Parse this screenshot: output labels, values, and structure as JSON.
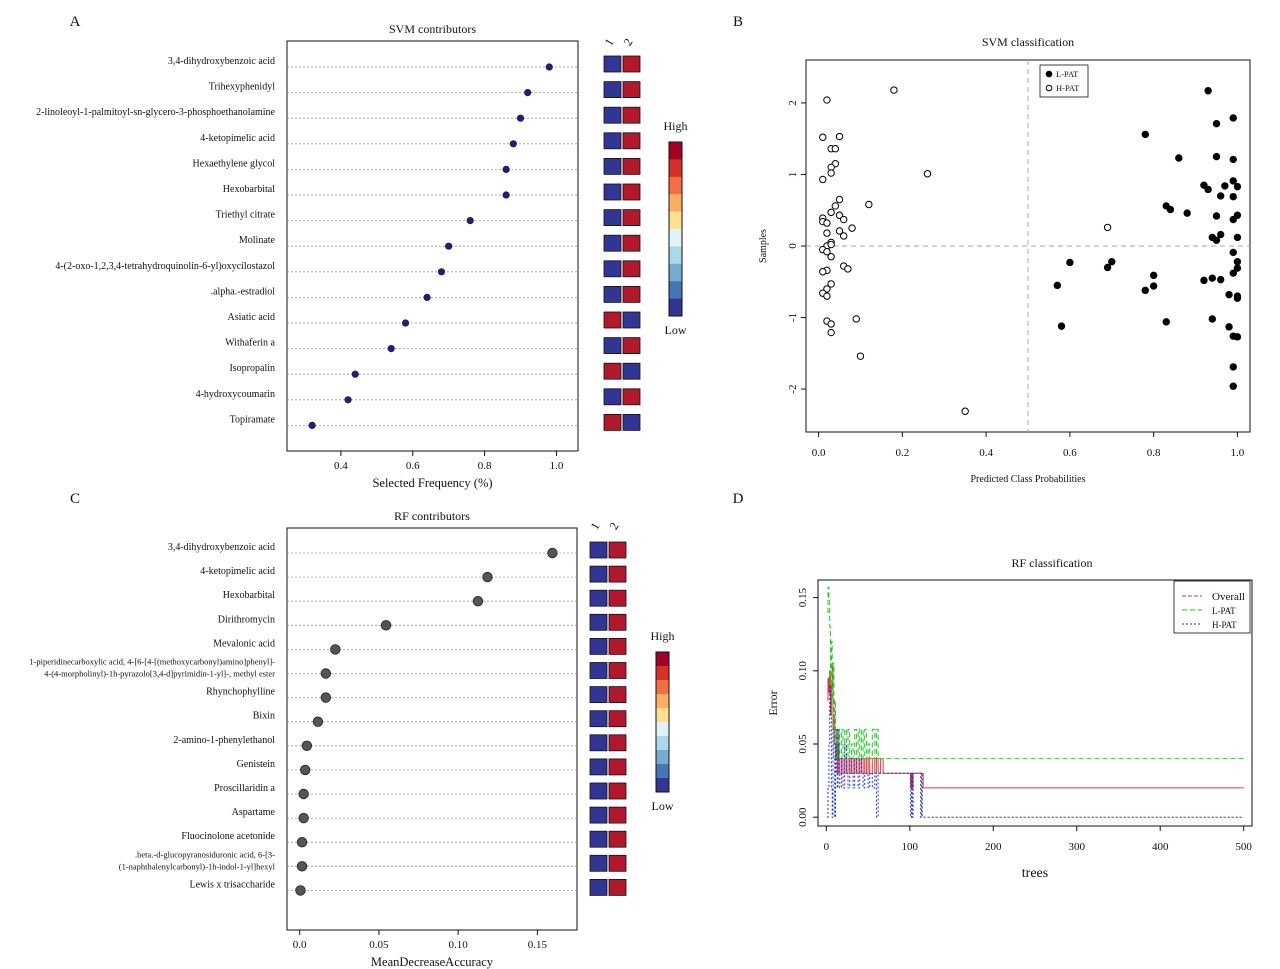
{
  "panel_letters": [
    "A",
    "B",
    "C",
    "D"
  ],
  "chart_data": [
    {
      "id": "A",
      "type": "scatter",
      "title": "SVM contributors",
      "xlabel": "Selected Frequency (%)",
      "xlim": [
        0.25,
        1.06
      ],
      "xticks": [
        0.4,
        0.6,
        0.8,
        1.0
      ],
      "xtick_labels": [
        "0.4",
        "0.6",
        "0.8",
        "1.0"
      ],
      "categories": [
        "3,4-dihydroxybenzoic acid",
        "Trihexyphenidyl",
        "2-linoleoyl-1-palmitoyl-sn-glycero-3-phosphoethanolamine",
        "4-ketopimelic acid",
        "Hexaethylene glycol",
        "Hexobarbital",
        "Triethyl citrate",
        "Molinate",
        "4-(2-oxo-1,2,3,4-tetrahydroquinolin-6-yl)oxycilostazol",
        ".alpha.-estradiol",
        "Asiatic acid",
        "Withaferin a",
        "Isopropalin",
        "4-hydroxycoumarin",
        "Topiramate"
      ],
      "values": [
        0.98,
        0.92,
        0.9,
        0.88,
        0.86,
        0.86,
        0.76,
        0.7,
        0.68,
        0.64,
        0.58,
        0.54,
        0.44,
        0.42,
        0.32
      ],
      "point_color": "#1a1f8c",
      "heatmap": {
        "columns": [
          "1",
          "2"
        ],
        "cells": [
          [
            "L",
            "H"
          ],
          [
            "L",
            "H"
          ],
          [
            "L",
            "H"
          ],
          [
            "L",
            "H"
          ],
          [
            "L",
            "H"
          ],
          [
            "L",
            "H"
          ],
          [
            "L",
            "H"
          ],
          [
            "L",
            "H"
          ],
          [
            "L",
            "H"
          ],
          [
            "L",
            "H"
          ],
          [
            "H",
            "L"
          ],
          [
            "L",
            "H"
          ],
          [
            "H",
            "L"
          ],
          [
            "L",
            "H"
          ],
          [
            "H",
            "L"
          ]
        ]
      },
      "colorbar": {
        "high_label": "High",
        "low_label": "Low"
      }
    },
    {
      "id": "B",
      "type": "scatter",
      "title": "SVM classification",
      "xlabel": "Predicted Class Probabilities",
      "ylabel": "Samples",
      "xlim": [
        -0.03,
        1.03
      ],
      "ylim": [
        -2.6,
        2.6
      ],
      "xticks": [
        0,
        0.2,
        0.4,
        0.6,
        0.8,
        1.0
      ],
      "xtick_labels": [
        "0.0",
        "0.2",
        "0.4",
        "0.6",
        "0.8",
        "1.0"
      ],
      "yticks": [
        -2,
        -1,
        0,
        1,
        2
      ],
      "ytick_labels": [
        "-2",
        "-1",
        "0",
        "1",
        "2"
      ],
      "vline": 0.5,
      "hline": 0,
      "legend": [
        "L-PAT",
        "H-PAT"
      ],
      "series": [
        {
          "name": "L-PAT",
          "marker": "filled",
          "points": [
            [
              0.93,
              2.17
            ],
            [
              0.99,
              1.79
            ],
            [
              0.95,
              1.71
            ],
            [
              0.78,
              1.56
            ],
            [
              0.86,
              1.23
            ],
            [
              0.95,
              1.25
            ],
            [
              0.99,
              1.21
            ],
            [
              0.92,
              0.85
            ],
            [
              0.97,
              0.84
            ],
            [
              0.99,
              0.91
            ],
            [
              1.0,
              0.83
            ],
            [
              0.93,
              0.79
            ],
            [
              0.96,
              0.7
            ],
            [
              0.99,
              0.69
            ],
            [
              0.83,
              0.56
            ],
            [
              0.84,
              0.51
            ],
            [
              0.88,
              0.46
            ],
            [
              0.95,
              0.42
            ],
            [
              1.0,
              0.43
            ],
            [
              0.99,
              0.37
            ],
            [
              0.96,
              0.16
            ],
            [
              0.94,
              0.12
            ],
            [
              1.0,
              0.12
            ],
            [
              0.95,
              0.08
            ],
            [
              0.99,
              -0.09
            ],
            [
              1.0,
              -0.22
            ],
            [
              0.6,
              -0.23
            ],
            [
              0.7,
              -0.22
            ],
            [
              0.69,
              -0.3
            ],
            [
              1.0,
              -0.31
            ],
            [
              0.99,
              -0.38
            ],
            [
              0.8,
              -0.41
            ],
            [
              0.94,
              -0.45
            ],
            [
              0.96,
              -0.47
            ],
            [
              0.92,
              -0.48
            ],
            [
              0.57,
              -0.55
            ],
            [
              0.8,
              -0.56
            ],
            [
              0.78,
              -0.62
            ],
            [
              0.98,
              -0.68
            ],
            [
              1.0,
              -0.7
            ],
            [
              1.0,
              -0.73
            ],
            [
              0.94,
              -1.02
            ],
            [
              0.83,
              -1.06
            ],
            [
              0.58,
              -1.12
            ],
            [
              0.98,
              -1.13
            ],
            [
              0.99,
              -1.26
            ],
            [
              1.0,
              -1.27
            ],
            [
              0.99,
              -1.69
            ],
            [
              0.99,
              -1.96
            ]
          ]
        },
        {
          "name": "H-PAT",
          "marker": "open",
          "points": [
            [
              0.18,
              2.18
            ],
            [
              0.02,
              2.04
            ],
            [
              0.01,
              1.52
            ],
            [
              0.05,
              1.53
            ],
            [
              0.03,
              1.36
            ],
            [
              0.04,
              1.36
            ],
            [
              0.04,
              1.15
            ],
            [
              0.03,
              1.1
            ],
            [
              0.03,
              1.02
            ],
            [
              0.01,
              0.93
            ],
            [
              0.26,
              1.01
            ],
            [
              0.05,
              0.65
            ],
            [
              0.04,
              0.56
            ],
            [
              0.12,
              0.58
            ],
            [
              0.03,
              0.47
            ],
            [
              0.05,
              0.43
            ],
            [
              0.06,
              0.37
            ],
            [
              0.01,
              0.39
            ],
            [
              0.01,
              0.34
            ],
            [
              0.02,
              0.32
            ],
            [
              0.08,
              0.25
            ],
            [
              0.69,
              0.26
            ],
            [
              0.05,
              0.21
            ],
            [
              0.02,
              0.18
            ],
            [
              0.06,
              0.14
            ],
            [
              0.03,
              0.05
            ],
            [
              0.02,
              0.0
            ],
            [
              0.03,
              0.02
            ],
            [
              0.01,
              -0.05
            ],
            [
              0.02,
              -0.08
            ],
            [
              0.03,
              -0.15
            ],
            [
              0.06,
              -0.28
            ],
            [
              0.07,
              -0.32
            ],
            [
              0.02,
              -0.34
            ],
            [
              0.01,
              -0.36
            ],
            [
              0.03,
              -0.53
            ],
            [
              0.02,
              -0.6
            ],
            [
              0.01,
              -0.66
            ],
            [
              0.02,
              -0.7
            ],
            [
              0.09,
              -1.02
            ],
            [
              0.02,
              -1.05
            ],
            [
              0.03,
              -1.09
            ],
            [
              0.03,
              -1.21
            ],
            [
              0.1,
              -1.54
            ],
            [
              0.35,
              -2.31
            ]
          ]
        }
      ]
    },
    {
      "id": "C",
      "type": "scatter",
      "title": "RF contributors",
      "xlabel": "MeanDecreaseAccuracy",
      "xlim": [
        -0.008,
        0.175
      ],
      "xticks": [
        0,
        0.05,
        0.1,
        0.15
      ],
      "xtick_labels": [
        "0.0",
        "0.05",
        "0.10",
        "0.15"
      ],
      "categories": [
        "3,4-dihydroxybenzoic acid",
        "4-ketopimelic acid",
        "Hexobarbital",
        "Dirithromycin",
        "Mevalonic acid",
        "1-piperidinecarboxylic acid, 4-[6-[4-[(methoxycarbonyl)amino]phenyl]-|4-(4-morpholinyl)-1h-pyrazolo[3,4-d]pyrimidin-1-yl]-, methyl ester",
        "Rhynchophylline",
        "Bixin",
        "2-amino-1-phenylethanol",
        "Genistein",
        "Proscillaridin a",
        "Aspartame",
        "Fluocinolone acetonide",
        ".beta.-d-glucopyranosiduronic acid, 6-[3-|(1-naphthalenylcarbonyl)-1h-indol-1-yl]hexyl",
        "Lewis x trisaccharide"
      ],
      "values": [
        0.1595,
        0.1185,
        0.1125,
        0.0545,
        0.0225,
        0.0165,
        0.0165,
        0.0115,
        0.0045,
        0.0035,
        0.0025,
        0.0025,
        0.0015,
        0.0015,
        0.0005
      ],
      "point_color": "#555555",
      "heatmap": {
        "columns": [
          "1",
          "2"
        ],
        "cells": [
          [
            "L",
            "H"
          ],
          [
            "L",
            "H"
          ],
          [
            "L",
            "H"
          ],
          [
            "L",
            "H"
          ],
          [
            "L",
            "H"
          ],
          [
            "L",
            "H"
          ],
          [
            "L",
            "H"
          ],
          [
            "L",
            "H"
          ],
          [
            "L",
            "H"
          ],
          [
            "L",
            "H"
          ],
          [
            "L",
            "H"
          ],
          [
            "L",
            "H"
          ],
          [
            "L",
            "H"
          ],
          [
            "L",
            "H"
          ],
          [
            "L",
            "H"
          ]
        ]
      },
      "colorbar": {
        "high_label": "High",
        "low_label": "Low"
      }
    },
    {
      "id": "D",
      "type": "line",
      "title": "RF classification",
      "xlabel": "trees",
      "ylabel": "Error",
      "xlim": [
        -10,
        510
      ],
      "ylim": [
        -0.006,
        0.162
      ],
      "xticks": [
        0,
        100,
        200,
        300,
        400,
        500
      ],
      "xtick_labels": [
        "0",
        "100",
        "200",
        "300",
        "400",
        "500"
      ],
      "yticks": [
        0,
        0.05,
        0.1,
        0.15
      ],
      "ytick_labels": [
        "0.00",
        "0.05",
        "0.10",
        "0.15"
      ],
      "legend": [
        "Overall",
        "L-PAT",
        "H-PAT"
      ],
      "series": [
        {
          "name": "Overall",
          "color": "#e03a3a",
          "dash": "solid",
          "x": [
            1,
            2,
            3,
            4,
            5,
            6,
            7,
            8,
            9,
            10,
            11,
            12,
            13,
            14,
            15,
            16,
            18,
            20,
            22,
            24,
            26,
            28,
            30,
            32,
            34,
            36,
            38,
            40,
            42,
            44,
            46,
            48,
            50,
            52,
            55,
            58,
            60,
            62,
            65,
            68,
            70,
            100,
            101,
            102,
            103,
            104,
            105,
            115,
            116,
            500
          ],
          "y": [
            0.08,
            0.095,
            0.085,
            0.1,
            0.07,
            0.09,
            0.104,
            0.06,
            0.07,
            0.05,
            0.04,
            0.06,
            0.03,
            0.05,
            0.04,
            0.03,
            0.04,
            0.03,
            0.04,
            0.03,
            0.04,
            0.03,
            0.04,
            0.03,
            0.04,
            0.03,
            0.04,
            0.03,
            0.04,
            0.03,
            0.04,
            0.03,
            0.04,
            0.03,
            0.04,
            0.03,
            0.04,
            0.03,
            0.04,
            0.03,
            0.03,
            0.03,
            0.02,
            0.03,
            0.02,
            0.03,
            0.03,
            0.03,
            0.02,
            0.02
          ]
        },
        {
          "name": "L-PAT",
          "color": "#22cc22",
          "dash": "dashed",
          "x": [
            1,
            2,
            3,
            4,
            5,
            6,
            7,
            8,
            9,
            10,
            11,
            12,
            13,
            14,
            15,
            16,
            18,
            20,
            22,
            24,
            26,
            28,
            30,
            32,
            34,
            36,
            38,
            40,
            42,
            44,
            46,
            48,
            50,
            52,
            55,
            58,
            60,
            62,
            65,
            68,
            70,
            500
          ],
          "y": [
            0.14,
            0.157,
            0.15,
            0.13,
            0.09,
            0.12,
            0.08,
            0.105,
            0.06,
            0.08,
            0.04,
            0.06,
            0.04,
            0.05,
            0.06,
            0.04,
            0.06,
            0.04,
            0.06,
            0.04,
            0.06,
            0.04,
            0.05,
            0.04,
            0.06,
            0.04,
            0.06,
            0.04,
            0.06,
            0.04,
            0.06,
            0.04,
            0.05,
            0.04,
            0.06,
            0.04,
            0.06,
            0.04,
            0.04,
            0.04,
            0.04,
            0.04
          ]
        },
        {
          "name": "H-PAT",
          "color": "#2233cc",
          "dash": "dotted",
          "x": [
            1,
            2,
            3,
            4,
            5,
            6,
            7,
            8,
            9,
            10,
            11,
            12,
            13,
            14,
            15,
            16,
            18,
            20,
            22,
            24,
            26,
            28,
            30,
            32,
            34,
            36,
            38,
            40,
            42,
            44,
            46,
            48,
            50,
            52,
            55,
            58,
            60,
            62,
            65,
            100,
            101,
            102,
            103,
            104,
            112,
            113,
            114,
            115,
            500
          ],
          "y": [
            0.0,
            0.02,
            0.05,
            0.09,
            0.07,
            0.02,
            0.0,
            0.06,
            0.04,
            0.0,
            0.05,
            0.03,
            0.02,
            0.06,
            0.03,
            0.02,
            0.04,
            0.02,
            0.05,
            0.03,
            0.02,
            0.04,
            0.03,
            0.02,
            0.04,
            0.03,
            0.02,
            0.04,
            0.03,
            0.02,
            0.03,
            0.03,
            0.02,
            0.03,
            0.02,
            0.03,
            0.0,
            0.03,
            0.03,
            0.03,
            0.0,
            0.03,
            0.0,
            0.03,
            0.03,
            0.0,
            0.03,
            0.0,
            0.0
          ]
        }
      ]
    }
  ]
}
